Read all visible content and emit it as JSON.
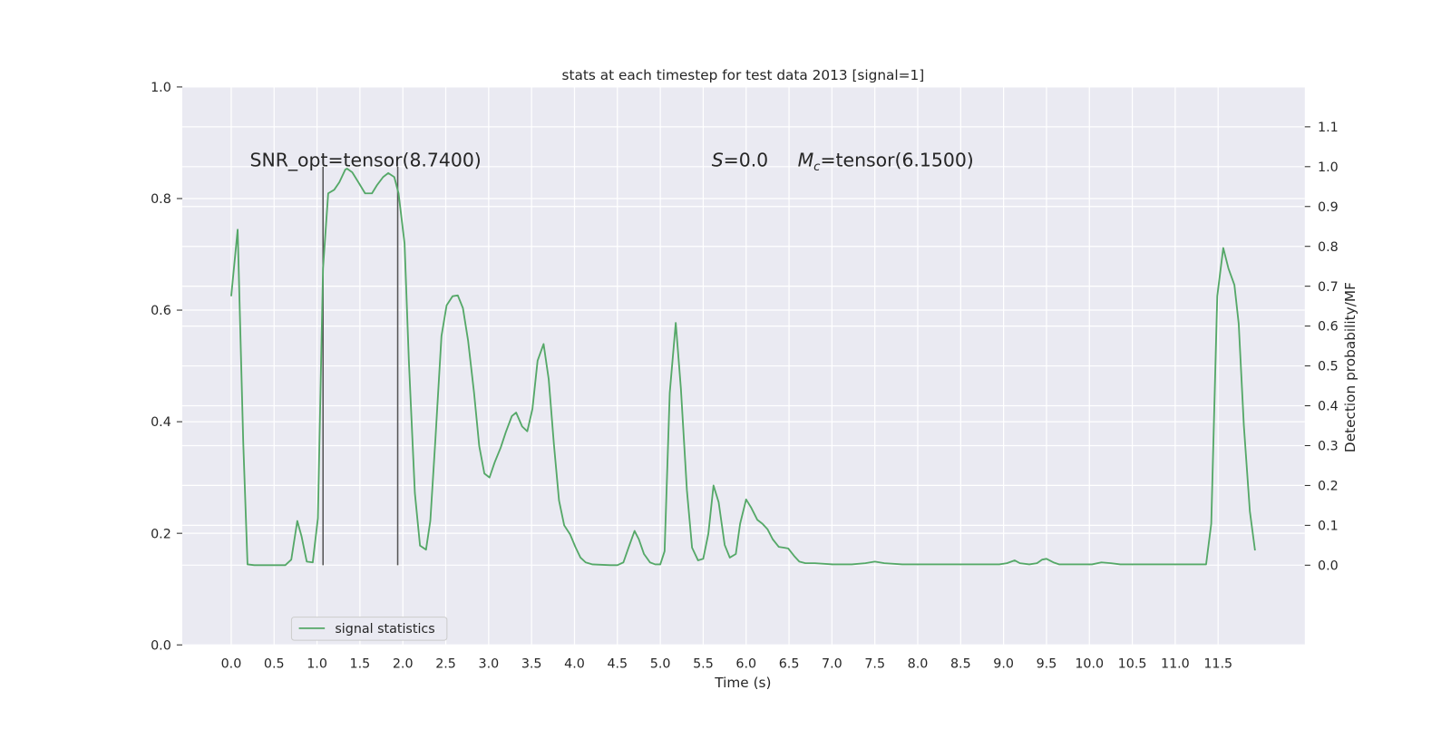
{
  "chart_data": {
    "type": "line",
    "title": "stats at each timestep for test data 2013 [signal=1]",
    "xlabel": "Time (s)",
    "y2label": "Detection probability/MF",
    "xlim": [
      -0.57,
      12.51
    ],
    "xticks": [
      {
        "value": 0,
        "label": "0.0"
      },
      0.5,
      {
        "value": 1,
        "label": "1.0"
      },
      1.5,
      {
        "value": 2,
        "label": "2.0"
      },
      2.5,
      {
        "value": 3,
        "label": "3.0"
      },
      3.5,
      {
        "value": 4,
        "label": "4.0"
      },
      4.5,
      {
        "value": 5,
        "label": "5.0"
      },
      5.5,
      {
        "value": 6,
        "label": "6.0"
      },
      6.5,
      {
        "value": 7,
        "label": "7.0"
      },
      7.5,
      {
        "value": 8,
        "label": "8.0"
      },
      8.5,
      {
        "value": 9,
        "label": "9.0"
      },
      9.5,
      {
        "value": 10,
        "label": "10.0"
      },
      10.5,
      {
        "value": 11,
        "label": "11.0"
      },
      11.5
    ],
    "ylim": [
      0,
      1
    ],
    "yticks": [
      {
        "value": 0,
        "label": "0.0"
      },
      0.2,
      0.4,
      0.6,
      0.8,
      {
        "value": 1,
        "label": "1.0"
      }
    ],
    "y2lim": [
      -0.2,
      1.2
    ],
    "y2ticks": [
      {
        "value": 0,
        "label": "0.0"
      },
      0.1,
      0.2,
      0.3,
      0.4,
      0.5,
      0.6,
      0.7,
      0.8,
      0.9,
      {
        "value": 1,
        "label": "1.0"
      },
      1.1
    ],
    "grid": true,
    "legend": "lower left",
    "annotations": [
      {
        "text": "SNR_opt=tensor(8.7400)"
      },
      {
        "symbol": "S",
        "text": "=0.0"
      },
      {
        "symbol": "M",
        "sub": "c",
        "text": "=tensor(6.1500)"
      }
    ],
    "vlines": {
      "x": [
        1.07,
        1.94
      ],
      "ymin": 0,
      "ymax": 1.0,
      "color": "#555555",
      "axis": "y2"
    },
    "x": [
      0,
      0.075,
      0.14,
      0.19,
      0.27,
      0.43,
      0.63,
      0.7,
      0.77,
      0.82,
      0.88,
      0.95,
      1.01,
      1.07,
      1.13,
      1.2,
      1.26,
      1.33,
      1.35,
      1.41,
      1.49,
      1.56,
      1.64,
      1.7,
      1.77,
      1.83,
      1.9,
      1.95,
      2.02,
      2.07,
      2.14,
      2.2,
      2.27,
      2.32,
      2.38,
      2.45,
      2.51,
      2.58,
      2.64,
      2.7,
      2.76,
      2.83,
      2.89,
      2.95,
      3.01,
      3.07,
      3.14,
      3.2,
      3.27,
      3.32,
      3.39,
      3.45,
      3.51,
      3.57,
      3.64,
      3.7,
      3.76,
      3.82,
      3.88,
      3.95,
      4.01,
      4.07,
      4.13,
      4.21,
      4.42,
      4.5,
      4.57,
      4.63,
      4.7,
      4.75,
      4.81,
      4.88,
      4.94,
      5.0,
      5.05,
      5.11,
      5.18,
      5.24,
      5.31,
      5.37,
      5.44,
      5.5,
      5.56,
      5.62,
      5.68,
      5.75,
      5.81,
      5.88,
      5.93,
      6.0,
      6.06,
      6.13,
      6.19,
      6.25,
      6.31,
      6.38,
      6.44,
      6.49,
      6.56,
      6.62,
      6.69,
      6.8,
      7.01,
      7.23,
      7.39,
      7.5,
      7.61,
      7.82,
      8.95,
      9.04,
      9.13,
      9.19,
      9.3,
      9.39,
      9.45,
      9.5,
      9.58,
      9.65,
      10.03,
      10.14,
      10.25,
      10.36,
      10.57,
      10.68,
      11.33,
      11.36,
      11.42,
      11.49,
      11.56,
      11.62,
      11.69,
      11.74,
      11.8,
      11.87,
      11.93
    ],
    "series": [
      {
        "name": "signal statistics",
        "color": "#55a868",
        "axis": "y2",
        "values": [
          0.675,
          0.842,
          0.309,
          0.002,
          0,
          0,
          0,
          0.014,
          0.111,
          0.072,
          0.009,
          0.007,
          0.118,
          0.745,
          0.933,
          0.942,
          0.961,
          0.993,
          0.995,
          0.986,
          0.958,
          0.933,
          0.933,
          0.954,
          0.974,
          0.984,
          0.974,
          0.933,
          0.807,
          0.513,
          0.181,
          0.049,
          0.039,
          0.111,
          0.318,
          0.575,
          0.652,
          0.675,
          0.677,
          0.645,
          0.564,
          0.432,
          0.299,
          0.23,
          0.22,
          0.258,
          0.295,
          0.334,
          0.374,
          0.383,
          0.348,
          0.336,
          0.392,
          0.513,
          0.555,
          0.466,
          0.304,
          0.162,
          0.1,
          0.077,
          0.046,
          0.019,
          0.007,
          0.002,
          0,
          0,
          0.007,
          0.044,
          0.086,
          0.065,
          0.028,
          0.007,
          0.002,
          0.002,
          0.035,
          0.432,
          0.608,
          0.443,
          0.188,
          0.044,
          0.012,
          0.016,
          0.079,
          0.2,
          0.158,
          0.051,
          0.019,
          0.028,
          0.104,
          0.165,
          0.144,
          0.114,
          0.104,
          0.09,
          0.065,
          0.046,
          0.044,
          0.042,
          0.023,
          0.009,
          0.005,
          0.005,
          0.002,
          0.002,
          0.005,
          0.009,
          0.005,
          0.002,
          0.002,
          0.005,
          0.012,
          0.005,
          0.002,
          0.005,
          0.014,
          0.016,
          0.007,
          0.002,
          0.002,
          0.007,
          0.005,
          0.002,
          0.002,
          0.002,
          0.002,
          0.002,
          0.104,
          0.675,
          0.796,
          0.745,
          0.703,
          0.606,
          0.35,
          0.135,
          0.037
        ]
      }
    ]
  }
}
